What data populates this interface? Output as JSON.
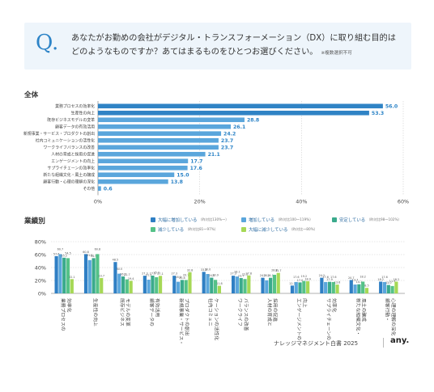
{
  "question": {
    "mark": "Q",
    "dot": ".",
    "text": "あなたがお勤めの会社がデジタル・トランスフォーメーション（DX）に取り組む目的は どのようなものですか？あてはまるものをひとつお選びください。",
    "note": "※複数選択不可"
  },
  "sections": {
    "overall": "全体",
    "by_performance": "業績別"
  },
  "footer": {
    "title": "ナレッジマネジメント白書 2025",
    "logo": "any."
  },
  "colors": {
    "bar": "#5aa6dc",
    "bar_top": "#2f83c5",
    "value": "#2d84c7",
    "grid": "#cfcfcf"
  },
  "chart_data": [
    {
      "type": "bar",
      "orientation": "horizontal",
      "categories": [
        "業務プロセスの効率化",
        "生産性の向上",
        "既存ビジネスモデルの変革",
        "顧客データの有効活用",
        "新規事業・サービス・プロダクトの創出",
        "社内コミュニケーションの活性化",
        "ワークライフバランスの改善",
        "人材の育成と採用の促進",
        "エンゲージメントの向上",
        "サプライチェーンの効率化",
        "新たな組織文化・風土の醸成",
        "顧客行動・心理の理解の深化",
        "その他"
      ],
      "values": [
        56.0,
        53.3,
        28.8,
        26.1,
        24.2,
        23.7,
        23.7,
        21.1,
        17.7,
        17.6,
        15.0,
        13.8,
        0.6
      ],
      "value_labels": [
        "56.0",
        "53.3",
        "28.8",
        "26.1",
        "24.2",
        "23.7",
        "23.7",
        "21.1",
        "17.7",
        "17.6",
        "15.0",
        "13.8",
        "0.6"
      ],
      "xlim": [
        0,
        60
      ],
      "ticks": [
        "0%",
        "20%",
        "40%",
        "60%"
      ],
      "tick_values": [
        0,
        20,
        40,
        60
      ]
    },
    {
      "type": "bar",
      "orientation": "vertical",
      "categories": [
        [
          "業務プロセスの",
          "効率化"
        ],
        [
          "生産性の向上"
        ],
        [
          "既存ビジネス",
          "モデルの変革"
        ],
        [
          "顧客データの",
          "有効活用"
        ],
        [
          "新規事業・サービス・",
          "プロダクトの創出"
        ],
        [
          "社内コミュニ",
          "ケーションの活性化"
        ],
        [
          "ワークライフ",
          "バランスの改善"
        ],
        [
          "人材の育成と",
          "採用の促進"
        ],
        [
          "エンゲージメントの",
          "向上"
        ],
        [
          "サプライチェーンの",
          "効率化"
        ],
        [
          "新たな組織文化・",
          "風土の醸成"
        ],
        [
          "顧客行動・",
          "心理の理解の深化"
        ]
      ],
      "series": [
        {
          "name": "大幅に増加している",
          "sub": "（昨対比130%〜）",
          "color": "#2f7fc4",
          "values": [
            57.6,
            60.8,
            48.5,
            27.3,
            27.3,
            33.3,
            27.3,
            24.2,
            12.1,
            24.2,
            20.7,
            18.2
          ],
          "labels": [
            "57.6",
            "60.8",
            "48.5",
            "27.3",
            "27.3",
            "33.3",
            "27.3",
            "24.2",
            "12.1",
            "24.2",
            "20.7",
            "18.2"
          ]
        },
        {
          "name": "増加している",
          "sub": "（昨対比100〜119%）",
          "color": "#5aa6dc",
          "values": [
            60.7,
            51.5,
            30.5,
            21.2,
            18.0,
            30.0,
            26.1,
            20.2,
            17.6,
            17.6,
            13.7,
            17.6
          ],
          "labels": [
            "60.7",
            "51.5",
            "30.5",
            "21.2",
            "18.0",
            "30.0",
            "26.1",
            "20.2",
            "17.6",
            "17.6",
            "13.7",
            "17.6"
          ]
        },
        {
          "name": "安定している",
          "sub": "（昨対比98〜102%）",
          "color": "#3aaa8c",
          "values": [
            55.2,
            54.5,
            26.2,
            27.5,
            20.8,
            24.3,
            23.7,
            24.1,
            17.0,
            17.9,
            14.1,
            13.0
          ],
          "labels": [
            "55.2",
            "54.5",
            "26.2",
            "27.5",
            "20.8",
            "24.3",
            "23.7",
            "24.1",
            "17.0",
            "17.9",
            "14.1",
            "13.0"
          ]
        },
        {
          "name": "減少している",
          "sub": "（昨対比81〜97%）",
          "color": "#55c288",
          "values": [
            54.5,
            60.8,
            21.7,
            25.0,
            20.7,
            20.9,
            22.2,
            28.8,
            19.2,
            17.6,
            18.2,
            11.4
          ],
          "labels": [
            "54.5",
            "60.8",
            "21.7",
            "25.0",
            "20.7",
            "20.9",
            "22.2",
            "28.8",
            "19.2",
            "17.6",
            "18.2",
            "11.4"
          ]
        },
        {
          "name": "大幅に減少している",
          "sub": "（昨対比〜80%）",
          "color": "#a6d856",
          "values": [
            22.1,
            23.7,
            19.4,
            27.1,
            32.8,
            11.8,
            27.8,
            31.7,
            18.9,
            13.6,
            8.5,
            18.2
          ],
          "labels": [
            "22.1",
            "23.7",
            "19.4",
            "27.1",
            "32.8",
            "11.8",
            "27.8",
            "31.7",
            "18.9",
            "13.6",
            "8.5",
            "18.2"
          ]
        }
      ],
      "ylim": [
        0,
        80
      ],
      "ticks": [
        "80%",
        "60%",
        "40%",
        "20%",
        "0%"
      ],
      "tick_values": [
        80,
        60,
        40,
        20,
        0
      ]
    }
  ]
}
